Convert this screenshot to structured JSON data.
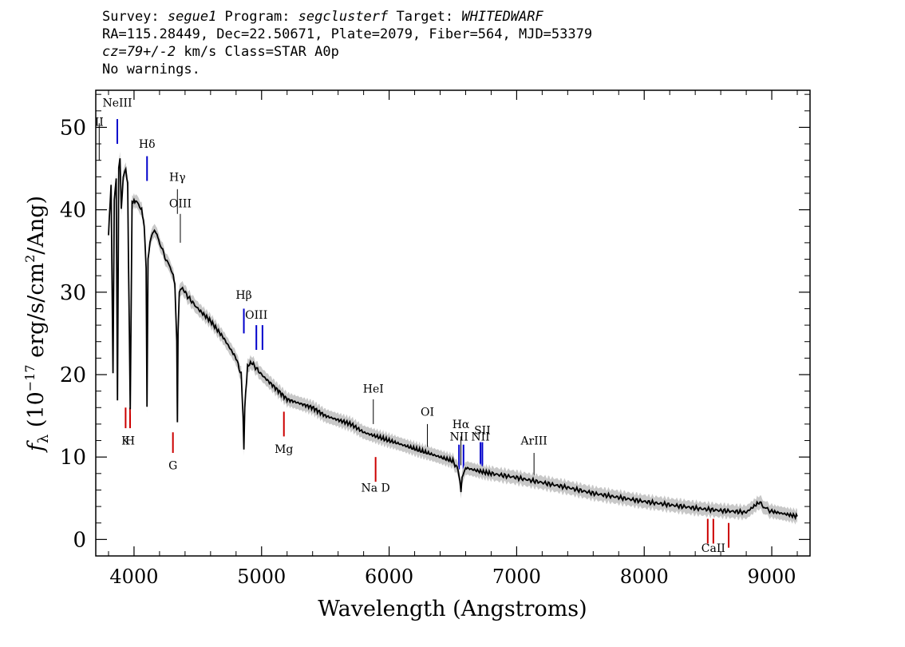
{
  "header": {
    "line1": {
      "survey_label": "Survey: ",
      "survey": "segue1",
      "program_label": " Program: ",
      "program": "segclusterf",
      "target_label": " Target: ",
      "target": "WHITEDWARF"
    },
    "line2": "RA=115.28449, Dec=22.50671, Plate=2079, Fiber=564, MJD=53379",
    "line3": {
      "cz": "cz=79+/-2",
      "rest": " km/s Class=STAR A0p"
    },
    "line4": "No warnings."
  },
  "chart_data": {
    "type": "line",
    "xlabel": "Wavelength (Angstroms)",
    "ylabel_parts": {
      "symbol": "f",
      "subscript": "λ",
      "mid": " (10",
      "exp": "−17",
      "unit": " erg/s/cm",
      "exp2": "2",
      "end": "/Ang)"
    },
    "xlim": [
      3700,
      9300
    ],
    "ylim": [
      -2,
      54.5
    ],
    "xticks": [
      4000,
      5000,
      6000,
      7000,
      8000,
      9000
    ],
    "yticks": [
      0,
      10,
      20,
      30,
      40,
      50
    ],
    "series": [
      {
        "color": "#000000",
        "x": [
          3800,
          3820,
          3835,
          3845,
          3860,
          3870,
          3880,
          3890,
          3900,
          3915,
          3935,
          3950,
          3970,
          3985,
          4000,
          4020,
          4060,
          4080,
          4095,
          4102,
          4110,
          4125,
          4140,
          4160,
          4180,
          4200,
          4250,
          4300,
          4320,
          4335,
          4340,
          4345,
          4355,
          4380,
          4420,
          4500,
          4600,
          4700,
          4800,
          4840,
          4855,
          4861,
          4868,
          4890,
          4920,
          5000,
          5100,
          5200,
          5300,
          5400,
          5500,
          5600,
          5700,
          5800,
          5900,
          6000,
          6100,
          6200,
          6300,
          6400,
          6500,
          6540,
          6555,
          6563,
          6572,
          6600,
          6700,
          6800,
          7000,
          7200,
          7400,
          7600,
          7800,
          8000,
          8200,
          8400,
          8600,
          8800,
          8900,
          8950,
          9000,
          9100,
          9200
        ],
        "y": [
          37,
          43,
          20,
          41,
          44,
          17,
          45,
          46,
          40,
          44,
          45,
          43,
          16,
          41,
          41,
          41,
          40,
          38,
          33,
          16,
          34,
          36,
          37,
          37.5,
          37,
          36,
          34,
          32.5,
          31,
          24,
          14,
          25,
          30,
          30.5,
          29.5,
          28,
          26.5,
          24.5,
          22,
          20,
          15,
          11,
          16,
          21,
          21.5,
          20,
          18.5,
          17,
          16.5,
          16,
          15,
          14.5,
          14,
          13,
          12.5,
          12,
          11.5,
          11,
          10.5,
          10,
          9.5,
          8.5,
          7,
          5.8,
          7.5,
          8.7,
          8.3,
          8,
          7.5,
          6.9,
          6.3,
          5.6,
          5.1,
          4.6,
          4.2,
          3.8,
          3.5,
          3.3,
          4.5,
          3.8,
          3.4,
          3.1,
          2.8
        ]
      }
    ],
    "annotations": [
      {
        "label": "NeIII",
        "x": 3869,
        "color": "#0000cc",
        "y0": 48,
        "y1": 51,
        "ly": 52.5
      },
      {
        "label": "II",
        "x": 3727,
        "color": "#000000",
        "y0": 46,
        "y1": 50.5,
        "ly": 50.2
      },
      {
        "label": "Hδ",
        "x": 4102,
        "color": "#0000cc",
        "y0": 43.5,
        "y1": 46.5,
        "ly": 47.5
      },
      {
        "label": "Hγ",
        "x": 4340,
        "color": "#000000",
        "y0": 39.5,
        "y1": 42.5,
        "ly": 43.5
      },
      {
        "label": "OIII",
        "x": 4363,
        "color": "#000000",
        "y0": 36,
        "y1": 39.5,
        "ly": 40.3
      },
      {
        "label": "Hβ",
        "x": 4861,
        "color": "#0000cc",
        "y0": 25,
        "y1": 28,
        "ly": 29.2
      },
      {
        "label": "OIII",
        "x": 4959,
        "color": "#0000cc",
        "y0": 23,
        "y1": 26,
        "ly": 26.8
      },
      {
        "label": "",
        "x": 5007,
        "color": "#0000cc",
        "y0": 23,
        "y1": 26,
        "ly": 0
      },
      {
        "label": "HeI",
        "x": 5876,
        "color": "#000000",
        "y0": 14,
        "y1": 17,
        "ly": 17.8
      },
      {
        "label": "OI",
        "x": 6300,
        "color": "#000000",
        "y0": 11,
        "y1": 14,
        "ly": 15
      },
      {
        "label": "NII",
        "x": 6548,
        "color": "#0000cc",
        "y0": 8.5,
        "y1": 11.5,
        "ly": 12
      },
      {
        "label": "Hα",
        "x": 6563,
        "color": "#000000",
        "y0": 9,
        "y1": 12.5,
        "ly": 13.5
      },
      {
        "label": "",
        "x": 6583,
        "color": "#0000cc",
        "y0": 8.5,
        "y1": 11.5,
        "ly": 0
      },
      {
        "label": "NII",
        "x": 6716,
        "color": "#0000cc",
        "y0": 8.8,
        "y1": 11.8,
        "ly": 12
      },
      {
        "label": "SII",
        "x": 6731,
        "color": "#0000cc",
        "y0": 8.8,
        "y1": 11.8,
        "ly": 12.8
      },
      {
        "label": "ArIII",
        "x": 7136,
        "color": "#000000",
        "y0": 7.5,
        "y1": 10.5,
        "ly": 11.5
      },
      {
        "label": "K",
        "x": 3934,
        "color": "#cc0000",
        "y0": 13.5,
        "y1": 16,
        "ly": 11.5
      },
      {
        "label": "H",
        "x": 3969,
        "color": "#cc0000",
        "y0": 13.5,
        "y1": 16,
        "ly": 11.5
      },
      {
        "label": "G",
        "x": 4305,
        "color": "#cc0000",
        "y0": 10.5,
        "y1": 13,
        "ly": 8.5
      },
      {
        "label": "Mg",
        "x": 5175,
        "color": "#cc0000",
        "y0": 12.5,
        "y1": 15.5,
        "ly": 10.5
      },
      {
        "label": "Na D",
        "x": 5894,
        "color": "#cc0000",
        "y0": 7,
        "y1": 10,
        "ly": 5.8
      },
      {
        "label": "",
        "x": 8498,
        "color": "#cc0000",
        "y0": -0.5,
        "y1": 2.5,
        "ly": 0
      },
      {
        "label": "CaII",
        "x": 8542,
        "color": "#cc0000",
        "y0": -0.5,
        "y1": 2.5,
        "ly": -1.5
      },
      {
        "label": "",
        "x": 8662,
        "color": "#cc0000",
        "y0": -1,
        "y1": 2,
        "ly": 0
      }
    ]
  }
}
